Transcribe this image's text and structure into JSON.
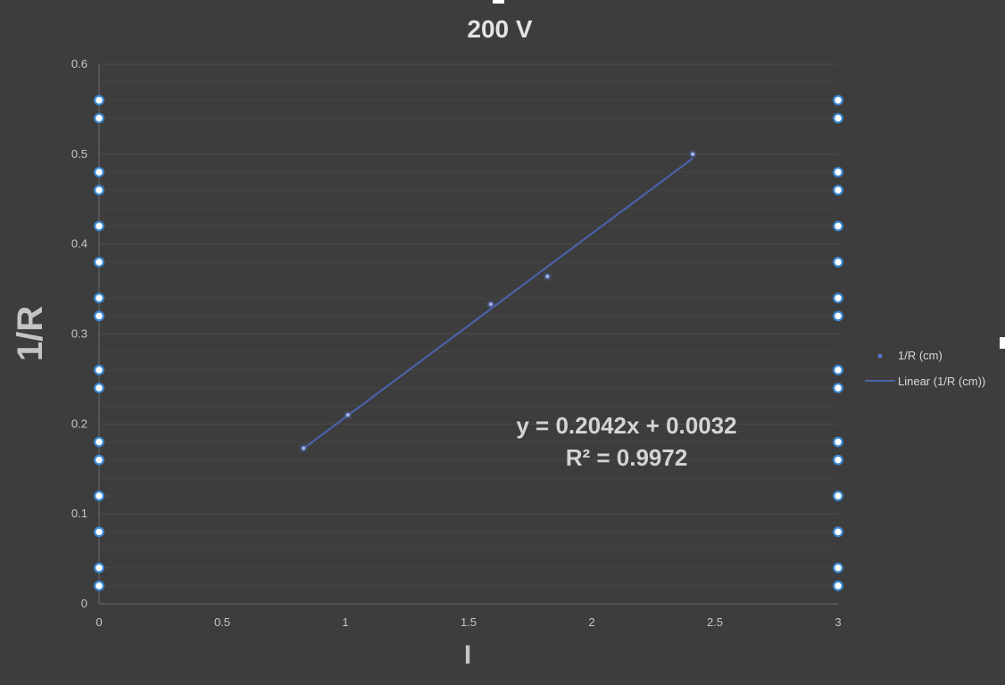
{
  "chart_data": {
    "type": "scatter",
    "title": "200 V",
    "xlabel": "I",
    "ylabel": "1/R",
    "xlim": [
      0,
      3
    ],
    "ylim": [
      0,
      0.6
    ],
    "x_ticks": [
      "0",
      "0.5",
      "1",
      "1.5",
      "2",
      "2.5",
      "3"
    ],
    "y_ticks": [
      "0",
      "0.1",
      "0.2",
      "0.3",
      "0.4",
      "0.5",
      "0.6"
    ],
    "grid": "horizontal",
    "legend_position": "right",
    "series": [
      {
        "name": "1/R (cm)",
        "kind": "points",
        "color": "#5b74c9",
        "points": [
          [
            0.83,
            0.173
          ],
          [
            1.01,
            0.21
          ],
          [
            1.59,
            0.333
          ],
          [
            1.82,
            0.364
          ],
          [
            2.41,
            0.5
          ]
        ]
      },
      {
        "name": "Linear (1/R (cm))",
        "kind": "trendline",
        "color": "#4a62a8",
        "slope": 0.2042,
        "intercept": 0.0032,
        "x_range": [
          0.83,
          2.41
        ]
      }
    ],
    "trendline_equation": "y = 0.2042x + 0.0032",
    "trendline_r2": "R² = 0.9972",
    "selection_handle_values": [
      0.02,
      0.04,
      0.08,
      0.12,
      0.16,
      0.18,
      0.24,
      0.26,
      0.32,
      0.34,
      0.38,
      0.42,
      0.46,
      0.48,
      0.54,
      0.56
    ]
  },
  "colors": {
    "background": "#3d3d3d",
    "grid": "#4c4c4c",
    "axis": "#6a6a6a",
    "handle_border": "#3d88d6"
  }
}
